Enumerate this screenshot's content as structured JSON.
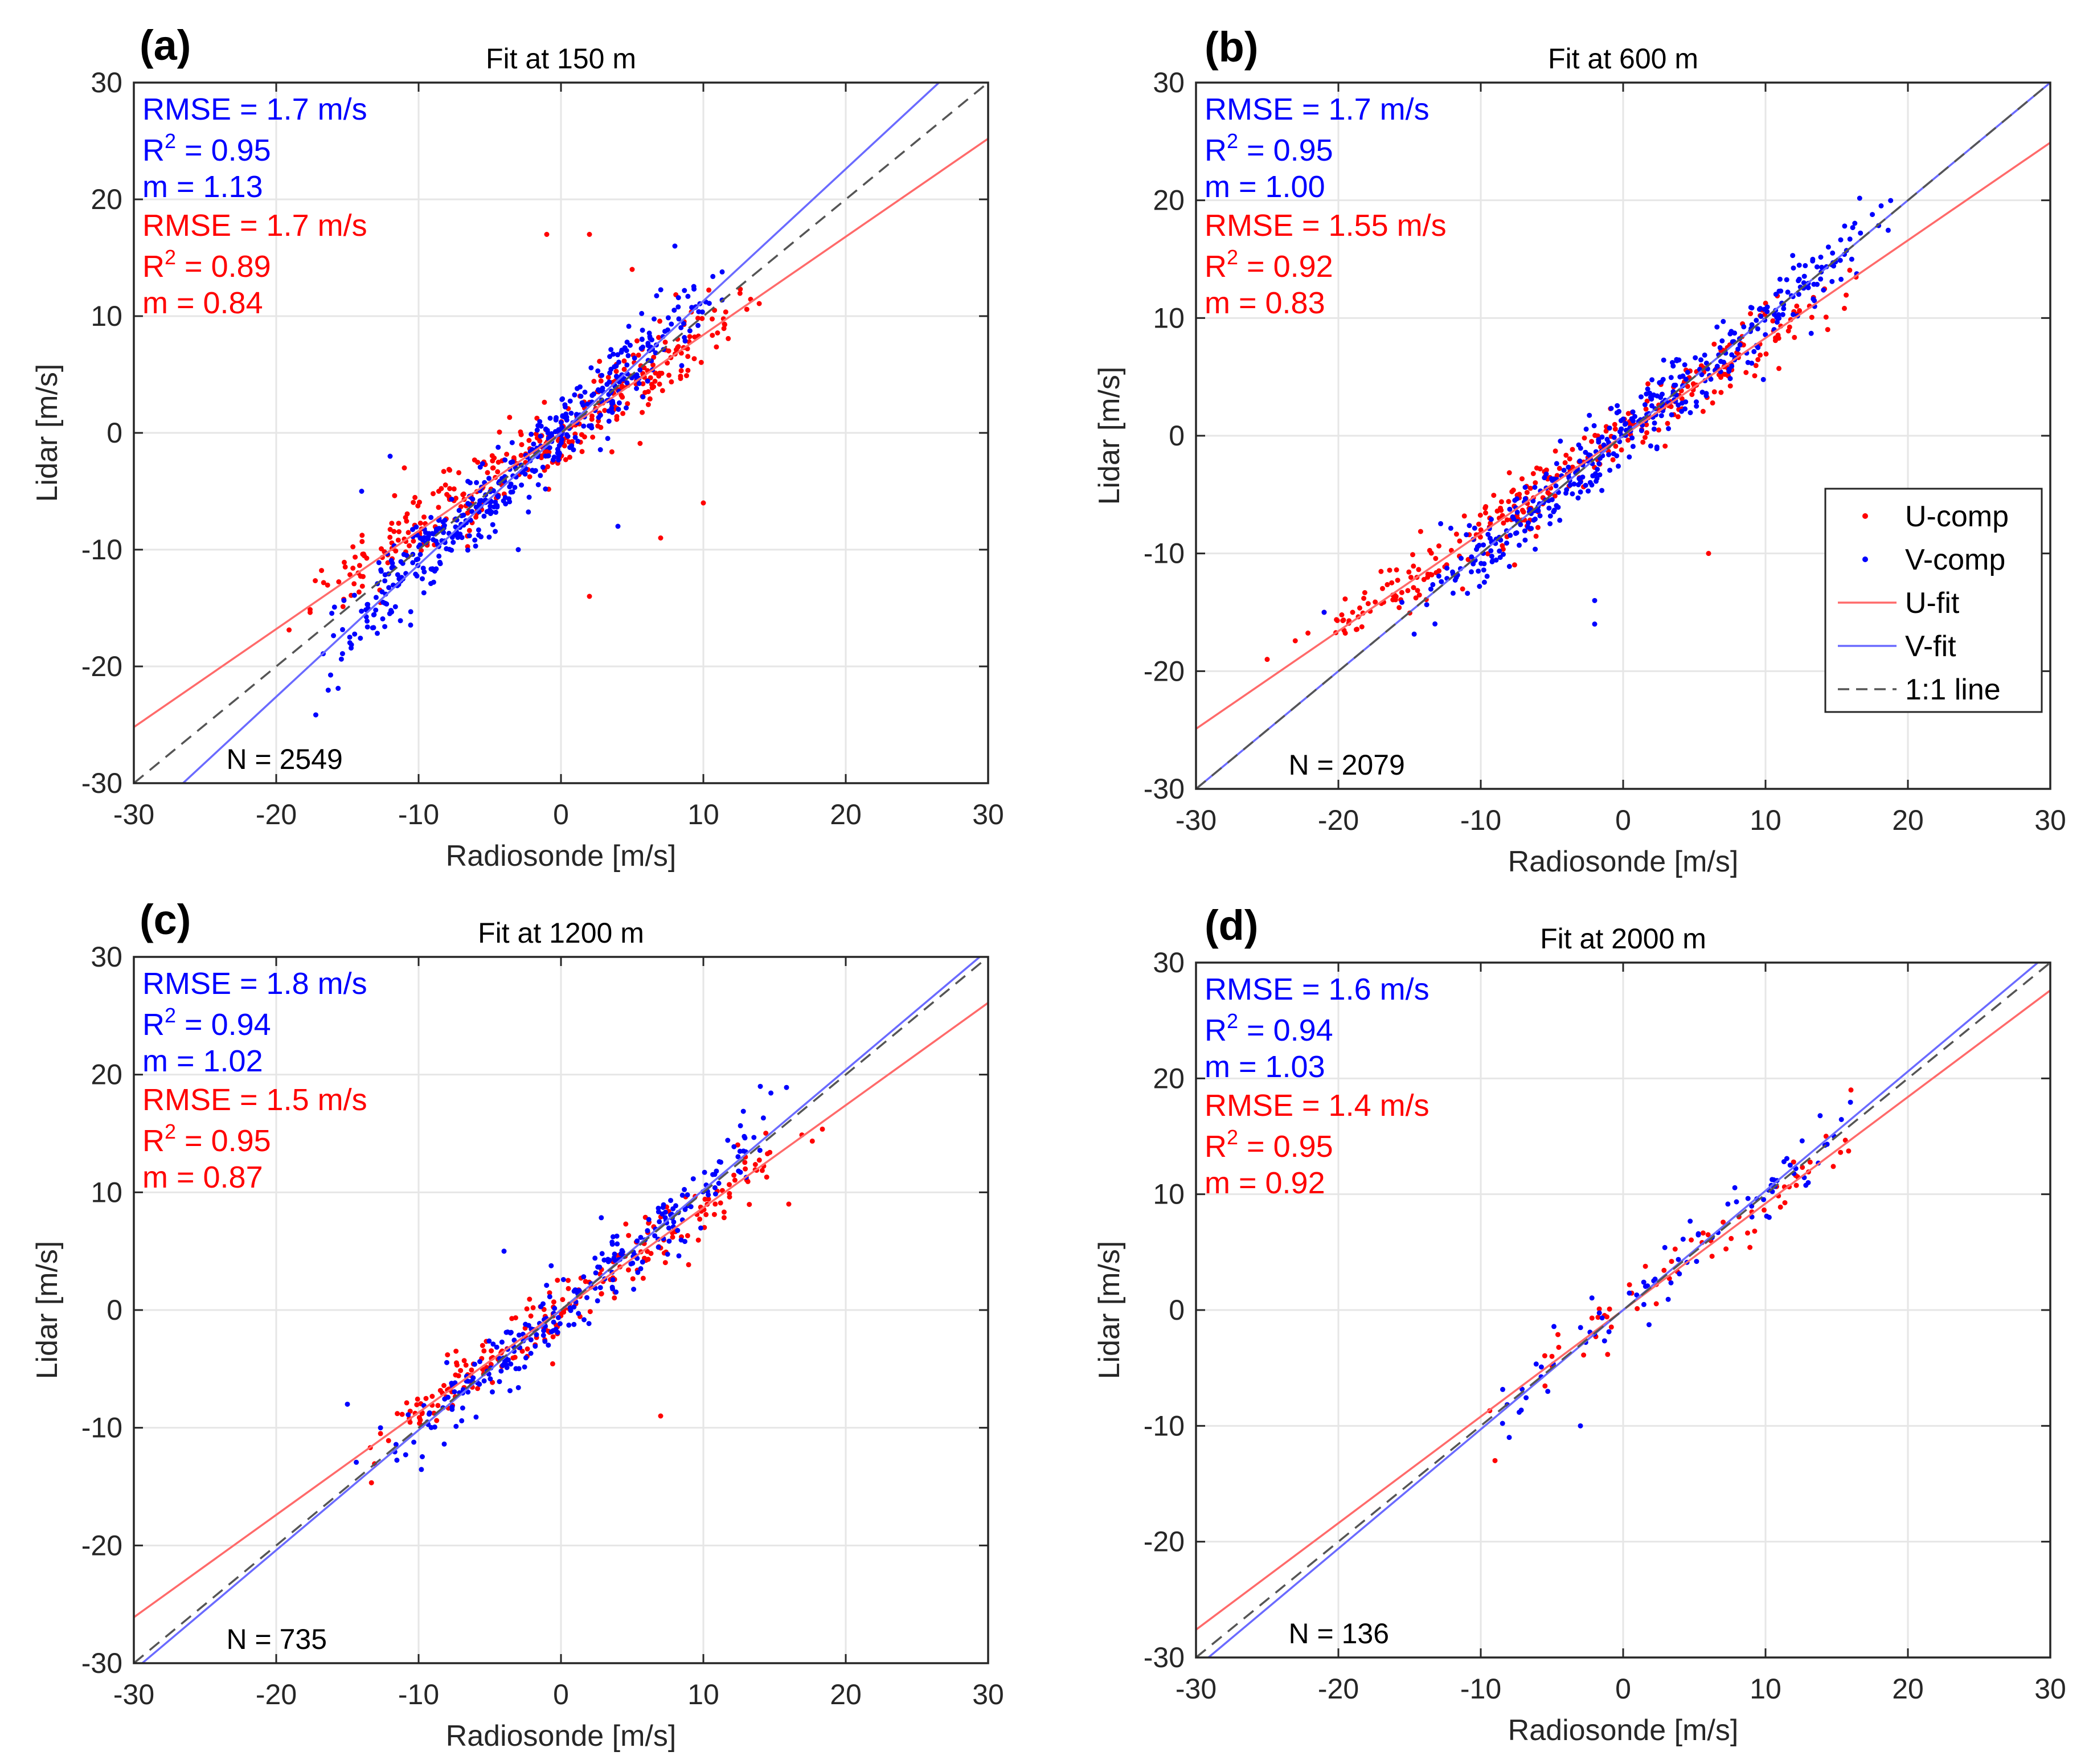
{
  "colors": {
    "u": "#ff0000",
    "v": "#0000ff",
    "u_fit": "#ff6a6a",
    "v_fit": "#6a6aff",
    "one_to_one": "#555555",
    "grid": "#e6e6e6"
  },
  "legend": {
    "placement": "right-middle of panel (b)",
    "entries": [
      {
        "key": "u_comp",
        "label": "U-comp",
        "kind": "marker",
        "color": "#ff0000"
      },
      {
        "key": "v_comp",
        "label": "V-comp",
        "kind": "marker",
        "color": "#0000ff"
      },
      {
        "key": "u_fit",
        "label": "U-fit",
        "kind": "line",
        "color": "#ff6a6a"
      },
      {
        "key": "v_fit",
        "label": "V-fit",
        "kind": "line",
        "color": "#6a6aff"
      },
      {
        "key": "one_to_one",
        "label": "1:1 line",
        "kind": "dashed",
        "color": "#555555"
      }
    ]
  },
  "chart_data": [
    {
      "type": "scatter",
      "panel": "(a)",
      "title": "Fit at 150 m",
      "xlabel": "Radiosonde [m/s]",
      "ylabel": "Lidar [m/s]",
      "xlim": [
        -30,
        30
      ],
      "ylim": [
        -30,
        30
      ],
      "xticks": [
        -30,
        -20,
        -10,
        0,
        10,
        20,
        30
      ],
      "yticks": [
        -30,
        -20,
        -10,
        0,
        10,
        20,
        30
      ],
      "grid": true,
      "n_label": "N = 2549",
      "stats": {
        "v": {
          "rmse": "RMSE = 1.7 m/s",
          "r2_prefix": "R",
          "r2_exp": "2",
          "r2_value": " = 0.95",
          "m": "m = 1.13"
        },
        "u": {
          "rmse": "RMSE = 1.7 m/s",
          "r2_prefix": "R",
          "r2_exp": "2",
          "r2_value": " = 0.89",
          "m": "m = 0.84"
        }
      },
      "fits": {
        "u": {
          "slope": 0.84,
          "intercept": 0.0
        },
        "v": {
          "slope": 1.13,
          "intercept": 0.0
        }
      },
      "series": [
        {
          "key": "u",
          "count": 360,
          "x_range": [
            -20,
            16
          ],
          "slope": 0.84,
          "intercept": 0.0,
          "spread": 1.6,
          "outliers": [
            [
              -1,
              17
            ],
            [
              2,
              17
            ],
            [
              10,
              -6
            ],
            [
              7,
              -9
            ],
            [
              2,
              -14
            ],
            [
              -11,
              -3
            ],
            [
              5,
              14
            ]
          ]
        },
        {
          "key": "v",
          "count": 480,
          "x_range": [
            -19,
            13
          ],
          "slope": 1.13,
          "intercept": 0.0,
          "spread": 1.6,
          "outliers": [
            [
              -12,
              -2
            ],
            [
              -14,
              -5
            ],
            [
              -3,
              -10
            ],
            [
              8,
              16
            ],
            [
              4,
              -8
            ]
          ]
        }
      ]
    },
    {
      "type": "scatter",
      "panel": "(b)",
      "title": "Fit at 600 m",
      "xlabel": "Radiosonde [m/s]",
      "ylabel": "Lidar [m/s]",
      "xlim": [
        -30,
        30
      ],
      "ylim": [
        -30,
        30
      ],
      "xticks": [
        -30,
        -20,
        -10,
        0,
        10,
        20,
        30
      ],
      "yticks": [
        -30,
        -20,
        -10,
        0,
        10,
        20,
        30
      ],
      "grid": true,
      "n_label": "N = 2079",
      "stats": {
        "v": {
          "rmse": "RMSE = 1.7 m/s",
          "r2_prefix": "R",
          "r2_exp": "2",
          "r2_value": " = 0.95",
          "m": "m = 1.00"
        },
        "u": {
          "rmse": "RMSE = 1.55 m/s",
          "r2_prefix": "R",
          "r2_exp": "2",
          "r2_value": " = 0.92",
          "m": "m = 0.83"
        }
      },
      "fits": {
        "u": {
          "slope": 0.83,
          "intercept": 0.0
        },
        "v": {
          "slope": 1.0,
          "intercept": 0.0
        }
      },
      "series": [
        {
          "key": "u",
          "count": 320,
          "x_range": [
            -25,
            19
          ],
          "slope": 0.83,
          "intercept": 0.0,
          "spread": 1.4,
          "outliers": [
            [
              6,
              -10
            ],
            [
              -21,
              -15
            ],
            [
              -19,
              -15
            ],
            [
              -25,
              -19
            ]
          ]
        },
        {
          "key": "v",
          "count": 420,
          "x_range": [
            -17,
            21
          ],
          "slope": 1.0,
          "intercept": 0.0,
          "spread": 1.5,
          "outliers": [
            [
              -2,
              -14
            ],
            [
              -2,
              -16
            ],
            [
              -21,
              -15
            ]
          ]
        }
      ]
    },
    {
      "type": "scatter",
      "panel": "(c)",
      "title": "Fit at 1200 m",
      "xlabel": "Radiosonde [m/s]",
      "ylabel": "Lidar [m/s]",
      "xlim": [
        -30,
        30
      ],
      "ylim": [
        -30,
        30
      ],
      "xticks": [
        -30,
        -20,
        -10,
        0,
        10,
        20,
        30
      ],
      "yticks": [
        -30,
        -20,
        -10,
        0,
        10,
        20,
        30
      ],
      "grid": true,
      "n_label": "N = 735",
      "stats": {
        "v": {
          "rmse": "RMSE = 1.8 m/s",
          "r2_prefix": "R",
          "r2_exp": "2",
          "r2_value": " = 0.94",
          "m": "m = 1.02"
        },
        "u": {
          "rmse": "RMSE = 1.5 m/s",
          "r2_prefix": "R",
          "r2_exp": "2",
          "r2_value": " = 0.95",
          "m": "m = 0.87"
        }
      },
      "fits": {
        "u": {
          "slope": 0.87,
          "intercept": 0.0
        },
        "v": {
          "slope": 1.02,
          "intercept": 0.0
        }
      },
      "series": [
        {
          "key": "u",
          "count": 230,
          "x_range": [
            -17,
            20
          ],
          "slope": 0.87,
          "intercept": 0.0,
          "spread": 1.3,
          "outliers": [
            [
              7,
              -9
            ],
            [
              16,
              9
            ]
          ]
        },
        {
          "key": "v",
          "count": 260,
          "x_range": [
            -15,
            17
          ],
          "slope": 1.02,
          "intercept": 0.0,
          "spread": 1.5,
          "outliers": [
            [
              -4,
              5
            ],
            [
              -15,
              -8
            ],
            [
              14,
              19
            ]
          ]
        }
      ]
    },
    {
      "type": "scatter",
      "panel": "(d)",
      "title": "Fit at 2000 m",
      "xlabel": "Radiosonde [m/s]",
      "ylabel": "Lidar [m/s]",
      "xlim": [
        -30,
        30
      ],
      "ylim": [
        -30,
        30
      ],
      "xticks": [
        -30,
        -20,
        -10,
        0,
        10,
        20,
        30
      ],
      "yticks": [
        -30,
        -20,
        -10,
        0,
        10,
        20,
        30
      ],
      "grid": true,
      "n_label": "N = 136",
      "stats": {
        "v": {
          "rmse": "RMSE = 1.6 m/s",
          "r2_prefix": "R",
          "r2_exp": "2",
          "r2_value": " = 0.94",
          "m": "m = 1.03"
        },
        "u": {
          "rmse": "RMSE = 1.4 m/s",
          "r2_prefix": "R",
          "r2_exp": "2",
          "r2_value": " = 0.95",
          "m": "m = 0.92"
        }
      },
      "fits": {
        "u": {
          "slope": 0.92,
          "intercept": 0.0
        },
        "v": {
          "slope": 1.03,
          "intercept": 0.0
        }
      },
      "series": [
        {
          "key": "u",
          "count": 60,
          "x_range": [
            -12,
            20
          ],
          "slope": 0.92,
          "intercept": 0.0,
          "spread": 1.2,
          "outliers": [
            [
              -9,
              -13
            ],
            [
              16,
              19
            ],
            [
              -5,
              -4
            ]
          ]
        },
        {
          "key": "v",
          "count": 76,
          "x_range": [
            -12,
            20
          ],
          "slope": 1.03,
          "intercept": 0.0,
          "spread": 1.4,
          "outliers": [
            [
              -3,
              -10
            ],
            [
              -8,
              -11
            ],
            [
              13,
              11
            ]
          ]
        }
      ]
    }
  ]
}
